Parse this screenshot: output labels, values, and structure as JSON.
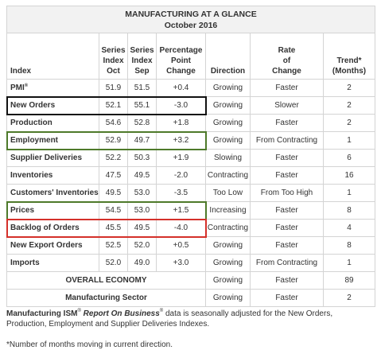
{
  "title": "MANUFACTURING AT A GLANCE",
  "subtitle": "October 2016",
  "headers": {
    "index": "Index",
    "series_oct": [
      "Series",
      "Index",
      "Oct"
    ],
    "series_sep": [
      "Series",
      "Index",
      "Sep"
    ],
    "change": [
      "Percentage",
      "Point",
      "Change"
    ],
    "direction": "Direction",
    "rate": [
      "Rate",
      "of",
      "Change"
    ],
    "trend": [
      "Trend*",
      "(Months)"
    ]
  },
  "rows": [
    {
      "name": "PMI",
      "sup": "®",
      "oct": "51.9",
      "sep": "51.5",
      "change": "+0.4",
      "direction": "Growing",
      "rate": "Faster",
      "trend": "2"
    },
    {
      "name": "New Orders",
      "sup": "",
      "oct": "52.1",
      "sep": "55.1",
      "change": "-3.0",
      "direction": "Growing",
      "rate": "Slower",
      "trend": "2"
    },
    {
      "name": "Production",
      "sup": "",
      "oct": "54.6",
      "sep": "52.8",
      "change": "+1.8",
      "direction": "Growing",
      "rate": "Faster",
      "trend": "2"
    },
    {
      "name": "Employment",
      "sup": "",
      "oct": "52.9",
      "sep": "49.7",
      "change": "+3.2",
      "direction": "Growing",
      "rate": "From Contracting",
      "trend": "1"
    },
    {
      "name": "Supplier Deliveries",
      "sup": "",
      "oct": "52.2",
      "sep": "50.3",
      "change": "+1.9",
      "direction": "Slowing",
      "rate": "Faster",
      "trend": "6"
    },
    {
      "name": "Inventories",
      "sup": "",
      "oct": "47.5",
      "sep": "49.5",
      "change": "-2.0",
      "direction": "Contracting",
      "rate": "Faster",
      "trend": "16"
    },
    {
      "name": "Customers' Inventories",
      "sup": "",
      "oct": "49.5",
      "sep": "53.0",
      "change": "-3.5",
      "direction": "Too Low",
      "rate": "From Too High",
      "trend": "1"
    },
    {
      "name": "Prices",
      "sup": "",
      "oct": "54.5",
      "sep": "53.0",
      "change": "+1.5",
      "direction": "Increasing",
      "rate": "Faster",
      "trend": "8"
    },
    {
      "name": "Backlog of Orders",
      "sup": "",
      "oct": "45.5",
      "sep": "49.5",
      "change": "-4.0",
      "direction": "Contracting",
      "rate": "Faster",
      "trend": "4"
    },
    {
      "name": "New Export Orders",
      "sup": "",
      "oct": "52.5",
      "sep": "52.0",
      "change": "+0.5",
      "direction": "Growing",
      "rate": "Faster",
      "trend": "8"
    },
    {
      "name": "Imports",
      "sup": "",
      "oct": "52.0",
      "sep": "49.0",
      "change": "+3.0",
      "direction": "Growing",
      "rate": "From Contracting",
      "trend": "1"
    }
  ],
  "summary": [
    {
      "label": "OVERALL ECONOMY",
      "direction": "Growing",
      "rate": "Faster",
      "trend": "89"
    },
    {
      "label": "Manufacturing Sector",
      "direction": "Growing",
      "rate": "Faster",
      "trend": "2"
    }
  ],
  "highlights": {
    "New Orders": "#111111",
    "Employment": "#4e7a2a",
    "Prices": "#4e7a2a",
    "Backlog of Orders": "#d4302a"
  },
  "footnote": {
    "part1": "Manufacturing ISM",
    "reg1": "®",
    "part2": "Report On Business",
    "reg2": "®",
    "part3": " data is seasonally adjusted for the New Orders, Production, Employment and Supplier Deliveries Indexes.",
    "asterisk": "*Number of months moving in current direction."
  }
}
